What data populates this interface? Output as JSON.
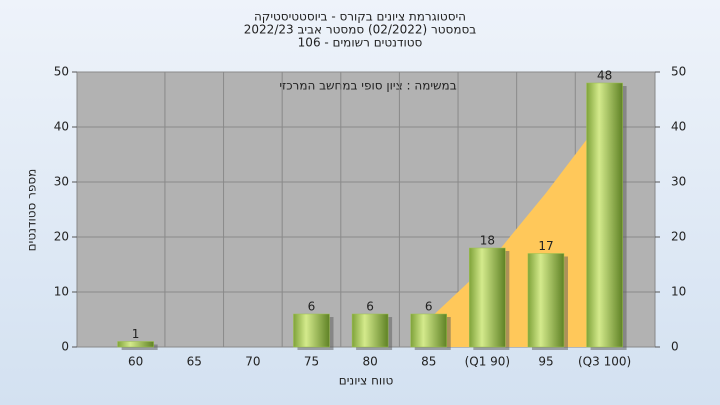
{
  "chart_data": {
    "type": "bar",
    "title": "היסטוגרמת ציונים בקורס - ביוסטטיסטיקה",
    "subtitle": [
      "בסמסטר  (02/2022)  סמסטר אביב 2022/23",
      "סטודנטים רשומים - 106"
    ],
    "annotation": "במשימה : ציון סופי במחשב המרכזי",
    "x_label": "טווח ציונים",
    "y_label": "מספר סטודנטים",
    "categories": [
      "60",
      "65",
      "70",
      "75",
      "80",
      "85",
      "(Q1 90)",
      "95",
      "(Q3 100)"
    ],
    "values": [
      1,
      0,
      0,
      6,
      6,
      6,
      18,
      17,
      48
    ],
    "value_labels": [
      "1",
      null,
      null,
      "6",
      "6",
      "6",
      "18",
      "17",
      "48"
    ],
    "color": "#9cc24a",
    "area": {
      "color": "#ffc85a",
      "values": [
        null,
        null,
        null,
        null,
        null,
        5,
        15,
        28,
        42
      ]
    },
    "ylim": [
      0,
      50
    ],
    "yticks": [
      0,
      10,
      20,
      30,
      40,
      50
    ],
    "y2lim": [
      0,
      50
    ],
    "y2ticks": [
      0,
      10,
      20,
      30,
      40,
      50
    ],
    "grid": true
  }
}
